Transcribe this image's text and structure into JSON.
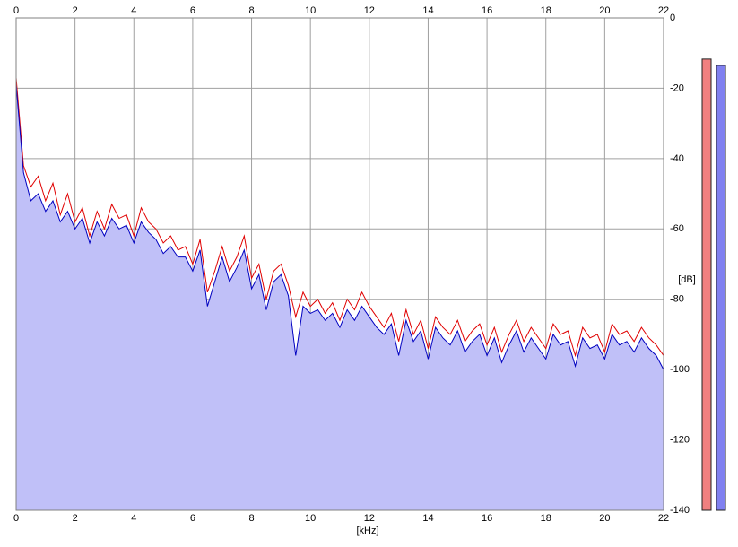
{
  "chart_data": {
    "type": "line",
    "x_label": "[kHz]",
    "y_label": "[dB]",
    "xlim": [
      0,
      22
    ],
    "ylim": [
      -140,
      0
    ],
    "xticks": [
      0,
      2,
      4,
      6,
      8,
      10,
      12,
      14,
      16,
      18,
      20,
      22
    ],
    "yticks": [
      0,
      -20,
      -40,
      -60,
      -80,
      -100,
      -120,
      -140
    ],
    "grid": true,
    "fill_color": "#c0c0f8",
    "x": [
      0,
      0.25,
      0.5,
      0.75,
      1,
      1.25,
      1.5,
      1.75,
      2,
      2.25,
      2.5,
      2.75,
      3,
      3.25,
      3.5,
      3.75,
      4,
      4.25,
      4.5,
      4.75,
      5,
      5.25,
      5.5,
      5.75,
      6,
      6.25,
      6.5,
      6.75,
      7,
      7.25,
      7.5,
      7.75,
      8,
      8.25,
      8.5,
      8.75,
      9,
      9.25,
      9.5,
      9.75,
      10,
      10.25,
      10.5,
      10.75,
      11,
      11.25,
      11.5,
      11.75,
      12,
      12.25,
      12.5,
      12.75,
      13,
      13.25,
      13.5,
      13.75,
      14,
      14.25,
      14.5,
      14.75,
      15,
      15.25,
      15.5,
      15.75,
      16,
      16.25,
      16.5,
      16.75,
      17,
      17.25,
      17.5,
      17.75,
      18,
      18.25,
      18.5,
      18.75,
      19,
      19.25,
      19.5,
      19.75,
      20,
      20.25,
      20.5,
      20.75,
      21,
      21.25,
      21.5,
      21.75,
      22
    ],
    "series": [
      {
        "color": "#e00000",
        "values": [
          -17,
          -42,
          -48,
          -45,
          -52,
          -47,
          -56,
          -50,
          -58,
          -54,
          -62,
          -55,
          -60,
          -53,
          -57,
          -56,
          -62,
          -54,
          -58,
          -60,
          -64,
          -62,
          -66,
          -65,
          -70,
          -63,
          -78,
          -72,
          -65,
          -72,
          -68,
          -62,
          -74,
          -70,
          -80,
          -72,
          -70,
          -76,
          -85,
          -78,
          -82,
          -80,
          -84,
          -81,
          -86,
          -80,
          -83,
          -78,
          -82,
          -85,
          -88,
          -84,
          -92,
          -83,
          -90,
          -86,
          -94,
          -85,
          -88,
          -90,
          -86,
          -92,
          -89,
          -87,
          -93,
          -88,
          -95,
          -90,
          -86,
          -92,
          -88,
          -91,
          -94,
          -87,
          -90,
          -89,
          -96,
          -88,
          -91,
          -90,
          -95,
          -87,
          -90,
          -89,
          -92,
          -88,
          -91,
          -93,
          -96
        ]
      },
      {
        "color": "#0000c0",
        "values": [
          -19,
          -44,
          -52,
          -50,
          -55,
          -52,
          -58,
          -55,
          -60,
          -57,
          -64,
          -58,
          -62,
          -57,
          -60,
          -59,
          -64,
          -58,
          -61,
          -63,
          -67,
          -65,
          -68,
          -68,
          -72,
          -66,
          -82,
          -75,
          -68,
          -75,
          -71,
          -66,
          -77,
          -73,
          -83,
          -75,
          -73,
          -79,
          -96,
          -82,
          -84,
          -83,
          -86,
          -84,
          -88,
          -83,
          -86,
          -82,
          -85,
          -88,
          -90,
          -87,
          -96,
          -86,
          -92,
          -89,
          -97,
          -88,
          -91,
          -93,
          -89,
          -95,
          -92,
          -90,
          -96,
          -91,
          -98,
          -93,
          -89,
          -95,
          -91,
          -94,
          -97,
          -90,
          -93,
          -92,
          -99,
          -91,
          -94,
          -93,
          -97,
          -90,
          -93,
          -92,
          -95,
          -91,
          -94,
          -96,
          -100
        ]
      }
    ],
    "meters": {
      "values": [
        -11.7,
        -13.5
      ],
      "colors": [
        "#f08080",
        "#8080f0"
      ]
    }
  }
}
